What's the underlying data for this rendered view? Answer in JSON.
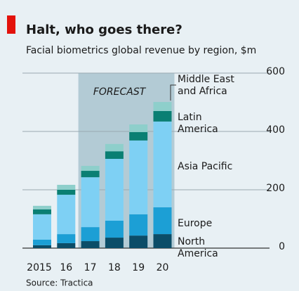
{
  "chart_data": {
    "type": "stacked_bar",
    "title": "Halt, who goes there?",
    "subtitle": "Facial biometrics global revenue by region, $m",
    "source": "Source: Tractica",
    "forecast": {
      "label": "FORECAST",
      "from": "17",
      "to": "20"
    },
    "categories": [
      "2015",
      "16",
      "17",
      "18",
      "19",
      "20"
    ],
    "series": [
      {
        "name": "North America",
        "color": "#0b4d68",
        "values": [
          10,
          17,
          24,
          36,
          43,
          48
        ]
      },
      {
        "name": "Europe",
        "color": "#1c9fd5",
        "values": [
          19,
          31,
          48,
          58,
          73,
          92
        ]
      },
      {
        "name": "Asia Pacific",
        "color": "#7ed0f4",
        "values": [
          87,
          135,
          171,
          212,
          253,
          294
        ]
      },
      {
        "name": "Latin America",
        "color": "#0a7f73",
        "values": [
          17,
          17,
          22,
          26,
          29,
          36
        ]
      },
      {
        "name": "Middle East and Africa",
        "color": "#8ecfcb",
        "values": [
          12,
          17,
          17,
          25,
          26,
          31
        ]
      }
    ],
    "ylim": [
      0,
      600
    ],
    "yticks": [
      0,
      200,
      400,
      600
    ],
    "grid": true
  }
}
